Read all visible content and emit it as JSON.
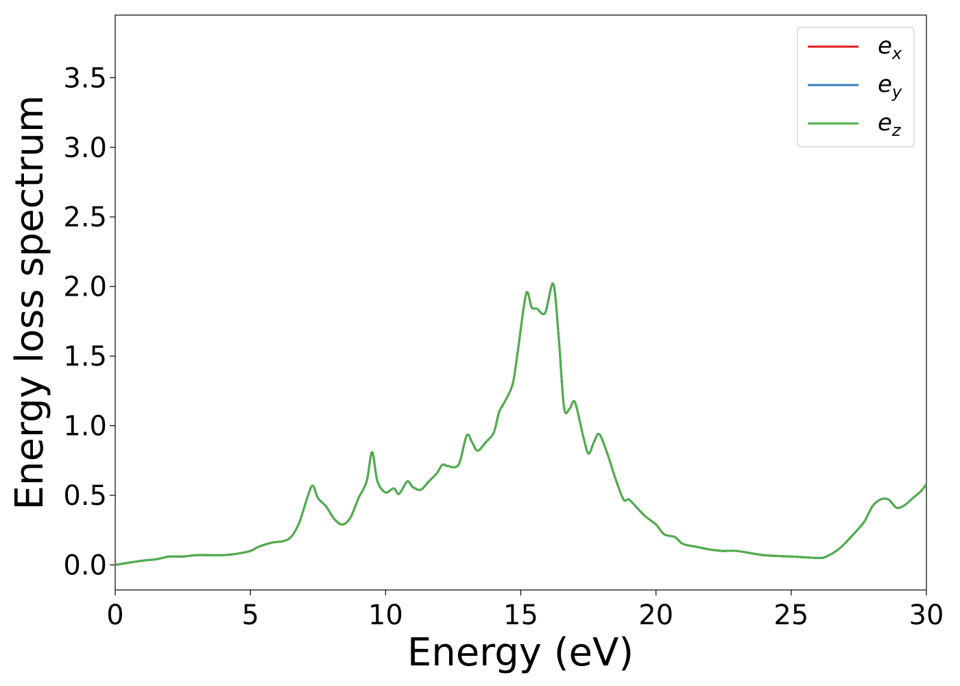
{
  "chart_data": {
    "type": "line",
    "title": "",
    "xlabel": "Energy (eV)",
    "ylabel": "Energy loss spectrum",
    "xlim": [
      0,
      30
    ],
    "ylim": [
      -0.18,
      3.95
    ],
    "xticks": [
      "0",
      "5",
      "10",
      "15",
      "20",
      "25",
      "30"
    ],
    "yticks": [
      "0.0",
      "0.5",
      "1.0",
      "1.5",
      "2.0",
      "2.5",
      "3.0",
      "3.5"
    ],
    "grid": false,
    "legend_position": "top-right",
    "series": [
      {
        "name": "e_x",
        "label_base": "e",
        "label_sub": "x",
        "color": "#e41a1c"
      },
      {
        "name": "e_y",
        "label_base": "e",
        "label_sub": "y",
        "color": "#377eb8"
      },
      {
        "name": "e_z",
        "label_base": "e",
        "label_sub": "z",
        "color": "#4daf4a"
      }
    ],
    "x": [
      0,
      1,
      1.5,
      2,
      2.5,
      3,
      3.5,
      4,
      4.5,
      5,
      5.3,
      5.8,
      6.2,
      6.5,
      6.8,
      7.1,
      7.3,
      7.5,
      7.8,
      8.1,
      8.4,
      8.7,
      9.0,
      9.3,
      9.5,
      9.7,
      10.0,
      10.3,
      10.5,
      10.8,
      11.0,
      11.3,
      11.6,
      11.9,
      12.1,
      12.3,
      12.7,
      13.0,
      13.2,
      13.4,
      13.7,
      14.0,
      14.2,
      14.4,
      14.7,
      14.9,
      15.2,
      15.4,
      15.6,
      15.9,
      16.2,
      16.4,
      16.6,
      16.8,
      17.0,
      17.3,
      17.5,
      17.7,
      17.9,
      18.2,
      18.5,
      18.8,
      19.0,
      19.3,
      19.6,
      20.0,
      20.3,
      20.7,
      21.0,
      21.5,
      22.0,
      22.5,
      23.0,
      24.0,
      25.0,
      26.0,
      26.3,
      26.8,
      27.3,
      27.7,
      28.0,
      28.3,
      28.6,
      28.9,
      29.2,
      29.5,
      29.8,
      30.0
    ],
    "y": [
      0.0,
      0.03,
      0.04,
      0.06,
      0.06,
      0.07,
      0.07,
      0.07,
      0.08,
      0.1,
      0.13,
      0.16,
      0.17,
      0.2,
      0.3,
      0.48,
      0.57,
      0.48,
      0.42,
      0.33,
      0.29,
      0.34,
      0.48,
      0.6,
      0.81,
      0.6,
      0.52,
      0.55,
      0.51,
      0.6,
      0.56,
      0.54,
      0.6,
      0.66,
      0.72,
      0.71,
      0.72,
      0.93,
      0.88,
      0.82,
      0.88,
      0.95,
      1.1,
      1.17,
      1.3,
      1.55,
      1.95,
      1.85,
      1.84,
      1.81,
      2.02,
      1.64,
      1.13,
      1.12,
      1.17,
      0.93,
      0.8,
      0.88,
      0.94,
      0.8,
      0.62,
      0.47,
      0.47,
      0.41,
      0.35,
      0.29,
      0.22,
      0.2,
      0.15,
      0.13,
      0.11,
      0.1,
      0.1,
      0.07,
      0.06,
      0.05,
      0.06,
      0.12,
      0.22,
      0.31,
      0.42,
      0.47,
      0.47,
      0.41,
      0.43,
      0.48,
      0.53,
      0.58
    ]
  }
}
